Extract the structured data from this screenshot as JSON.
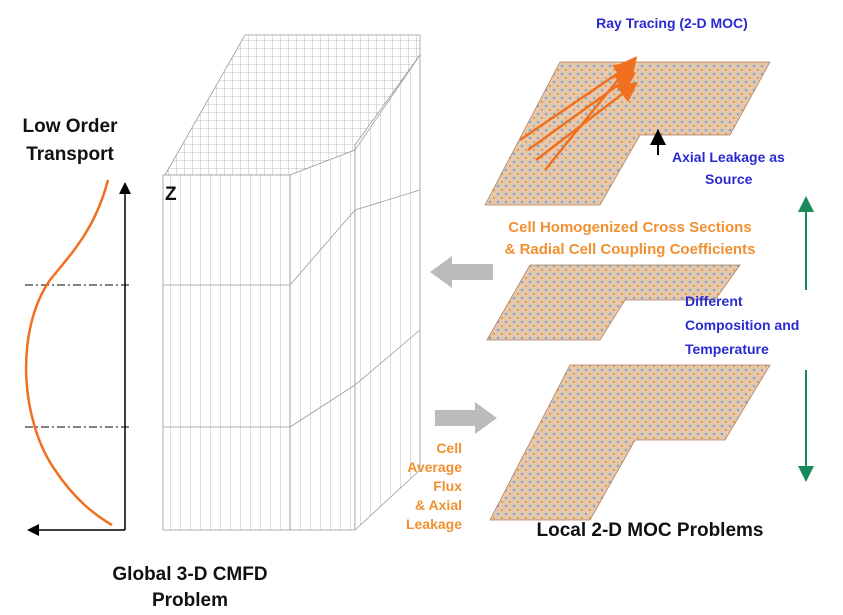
{
  "labels": {
    "low_order": [
      "Low Order",
      "Transport"
    ],
    "z_axis": "Z",
    "global": [
      "Global 3-D CMFD",
      "Problem"
    ],
    "ray_tracing": "Ray Tracing (2-D MOC)",
    "axial_leakage": [
      "Axial Leakage as",
      "Source"
    ],
    "cross_sections": [
      "Cell Homogenized Cross Sections",
      "& Radial Cell Coupling Coefficients"
    ],
    "different": [
      "Different",
      "Composition and",
      "Temperature"
    ],
    "cell_flux": [
      "Cell",
      "Average",
      "Flux",
      "& Axial",
      "Leakage"
    ],
    "local": "Local 2-D MOC Problems"
  }
}
